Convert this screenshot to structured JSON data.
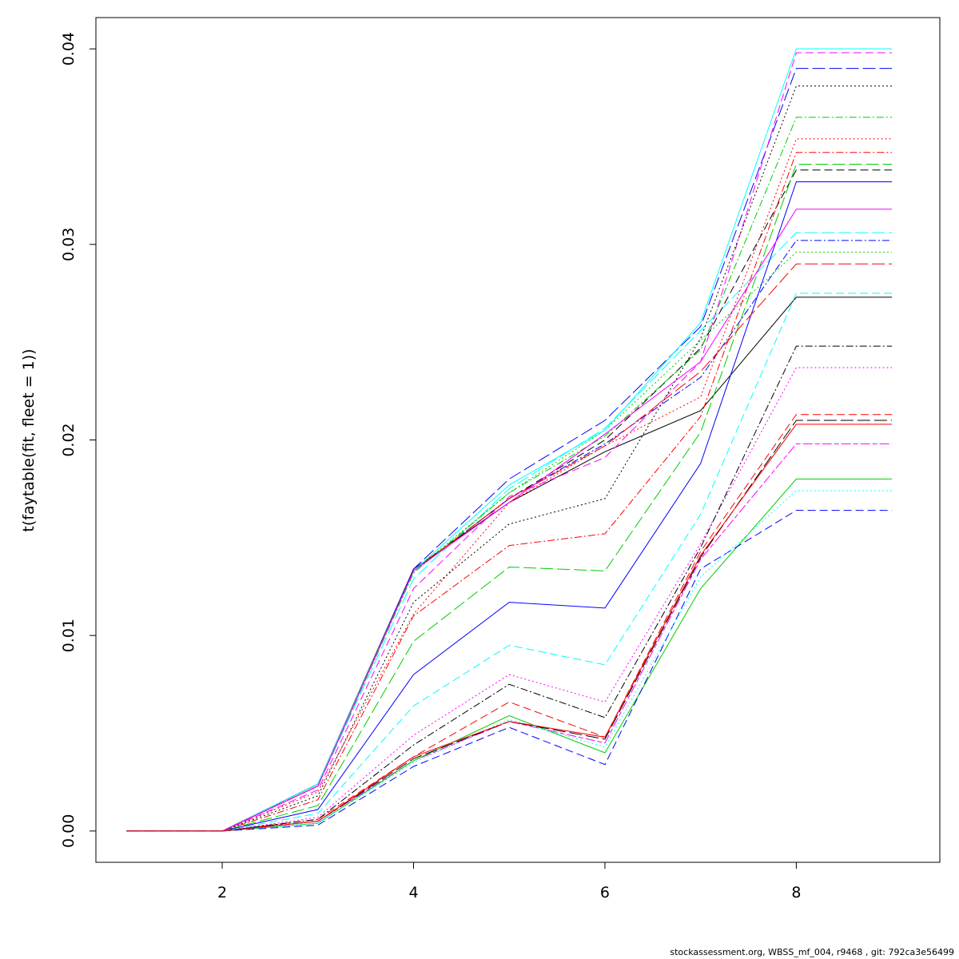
{
  "chart_data": {
    "type": "line",
    "ylabel": "t(faytable(fit, fleet = 1))",
    "xlabel": "",
    "xlim": [
      0.68,
      9.5
    ],
    "ylim": [
      -0.0016,
      0.0416
    ],
    "xticks": [
      2,
      4,
      6,
      8
    ],
    "yticks": [
      0.0,
      0.01,
      0.02,
      0.03,
      0.04
    ],
    "ytick_labels": [
      "0.00",
      "0.01",
      "0.02",
      "0.03",
      "0.04"
    ],
    "x": [
      1,
      2,
      3,
      4,
      5,
      6,
      7,
      8,
      9
    ],
    "colors": [
      "#000000",
      "#ff0000",
      "#00cd00",
      "#0000ff",
      "#00ffff",
      "#ff00ff"
    ],
    "series": [
      {
        "color": "#000000",
        "dash": "solid",
        "values": [
          0,
          0,
          0.0024,
          0.0134,
          0.0168,
          0.0194,
          0.0215,
          0.0273,
          0.0273
        ]
      },
      {
        "color": "#ff0000",
        "dash": "dashed",
        "values": [
          0,
          0,
          0.0006,
          0.0038,
          0.0066,
          0.0048,
          0.0143,
          0.0213,
          0.0213
        ]
      },
      {
        "color": "#00cd00",
        "dash": "dotted",
        "values": [
          0,
          0,
          0.0023,
          0.0133,
          0.0173,
          0.0205,
          0.0251,
          0.0296,
          0.0296
        ]
      },
      {
        "color": "#0000ff",
        "dash": "dotdash",
        "values": [
          0,
          0,
          0.0023,
          0.0133,
          0.017,
          0.0198,
          0.0232,
          0.0302,
          0.0302
        ]
      },
      {
        "color": "#00ffff",
        "dash": "longdash",
        "values": [
          0,
          0,
          0.0023,
          0.0129,
          0.0175,
          0.0206,
          0.0256,
          0.0306,
          0.0306
        ]
      },
      {
        "color": "#ff00ff",
        "dash": "twodash",
        "values": [
          0,
          0,
          0.0005,
          0.0036,
          0.0056,
          0.0045,
          0.0139,
          0.0198,
          0.0198
        ]
      },
      {
        "color": "#000000",
        "dash": "dashed",
        "values": [
          0,
          0,
          0.0024,
          0.0133,
          0.017,
          0.02,
          0.0247,
          0.0338,
          0.0338
        ]
      },
      {
        "color": "#ff0000",
        "dash": "dotted",
        "values": [
          0,
          0,
          0.002,
          0.0111,
          0.0168,
          0.0197,
          0.0222,
          0.0354,
          0.0354
        ]
      },
      {
        "color": "#00cd00",
        "dash": "dotdash",
        "values": [
          0,
          0,
          0.0023,
          0.0132,
          0.0173,
          0.0202,
          0.0246,
          0.0365,
          0.0365
        ]
      },
      {
        "color": "#0000ff",
        "dash": "longdash",
        "values": [
          0,
          0,
          0.0023,
          0.0134,
          0.018,
          0.021,
          0.0258,
          0.039,
          0.039
        ]
      },
      {
        "color": "#00ffff",
        "dash": "solid",
        "values": [
          0,
          0,
          0.0024,
          0.0133,
          0.0177,
          0.0205,
          0.026,
          0.04,
          0.04
        ]
      },
      {
        "color": "#ff00ff",
        "dash": "dashed",
        "values": [
          0,
          0,
          0.0021,
          0.0124,
          0.0171,
          0.0191,
          0.024,
          0.0398,
          0.0398
        ]
      },
      {
        "color": "#000000",
        "dash": "dotted",
        "values": [
          0,
          0,
          0.0018,
          0.0117,
          0.0157,
          0.017,
          0.0252,
          0.0381,
          0.0381
        ]
      },
      {
        "color": "#ff0000",
        "dash": "dotdash",
        "values": [
          0,
          0,
          0.0016,
          0.011,
          0.0146,
          0.0152,
          0.0212,
          0.0347,
          0.0347
        ]
      },
      {
        "color": "#00cd00",
        "dash": "longdash",
        "values": [
          0,
          0,
          0.0013,
          0.0097,
          0.0135,
          0.0133,
          0.0204,
          0.0341,
          0.0341
        ]
      },
      {
        "color": "#0000ff",
        "dash": "solid",
        "values": [
          0,
          0,
          0.0011,
          0.008,
          0.0117,
          0.0114,
          0.0188,
          0.0332,
          0.0332
        ]
      },
      {
        "color": "#00ffff",
        "dash": "dashed",
        "values": [
          0,
          0,
          0.0009,
          0.0064,
          0.0095,
          0.0085,
          0.0162,
          0.0275,
          0.0275
        ]
      },
      {
        "color": "#ff00ff",
        "dash": "dotted",
        "values": [
          0,
          0,
          0.0007,
          0.0049,
          0.008,
          0.0066,
          0.0147,
          0.0237,
          0.0237
        ]
      },
      {
        "color": "#000000",
        "dash": "dotdash",
        "values": [
          0,
          0,
          0.0006,
          0.0044,
          0.0075,
          0.0058,
          0.0145,
          0.0248,
          0.0248
        ]
      },
      {
        "color": "#ff0000",
        "dash": "longdash",
        "values": [
          0,
          0,
          0.0023,
          0.0133,
          0.017,
          0.0197,
          0.0235,
          0.029,
          0.029
        ]
      },
      {
        "color": "#00cd00",
        "dash": "solid",
        "values": [
          0,
          0,
          0.0004,
          0.0036,
          0.0059,
          0.004,
          0.0124,
          0.018,
          0.018
        ]
      },
      {
        "color": "#0000ff",
        "dash": "dashed",
        "values": [
          0,
          0,
          0.0003,
          0.0033,
          0.0053,
          0.0034,
          0.0134,
          0.0164,
          0.0164
        ]
      },
      {
        "color": "#00ffff",
        "dash": "dotted",
        "values": [
          0,
          0,
          0.0004,
          0.0035,
          0.0057,
          0.0043,
          0.013,
          0.0174,
          0.0174
        ]
      },
      {
        "color": "#ff00ff",
        "dash": "solid",
        "values": [
          0,
          0,
          0.0023,
          0.0133,
          0.0168,
          0.0203,
          0.024,
          0.0318,
          0.0318
        ]
      },
      {
        "color": "#000000",
        "dash": "longdash",
        "values": [
          0,
          0,
          0.0005,
          0.0037,
          0.0056,
          0.0047,
          0.014,
          0.021,
          0.021
        ]
      },
      {
        "color": "#ff0000",
        "dash": "solid",
        "values": [
          0,
          0,
          0.0005,
          0.0038,
          0.0056,
          0.0048,
          0.0141,
          0.0208,
          0.0208
        ]
      }
    ]
  },
  "footer": "stockassessment.org, WBSS_mf_004, r9468 , git: 792ca3e56499"
}
